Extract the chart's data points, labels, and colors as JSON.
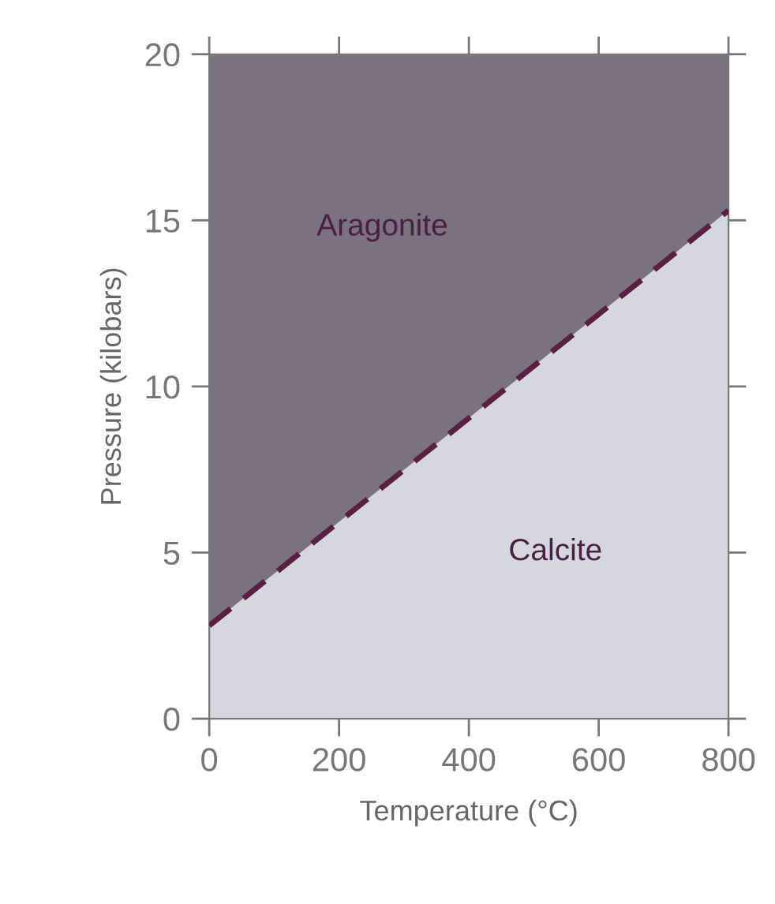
{
  "chart_data": {
    "type": "area",
    "stacked": true,
    "xlabel": "Temperature (°C)",
    "ylabel": "Pressure (kilobars)",
    "x": [
      0,
      800
    ],
    "series": [
      {
        "name": "Calcite",
        "color": "#d6d6de",
        "line_style": "dashed",
        "values": [
          2.8,
          15.3
        ]
      },
      {
        "name": "Aragonite",
        "color": "#7b7280",
        "values": [
          17.2,
          4.7
        ]
      }
    ],
    "xlim": [
      0,
      800
    ],
    "ylim": [
      0,
      20
    ],
    "xticks": [
      0,
      200,
      400,
      600,
      800
    ],
    "yticks": [
      0,
      5,
      10,
      15,
      20
    ],
    "grid": false,
    "legend": false
  }
}
